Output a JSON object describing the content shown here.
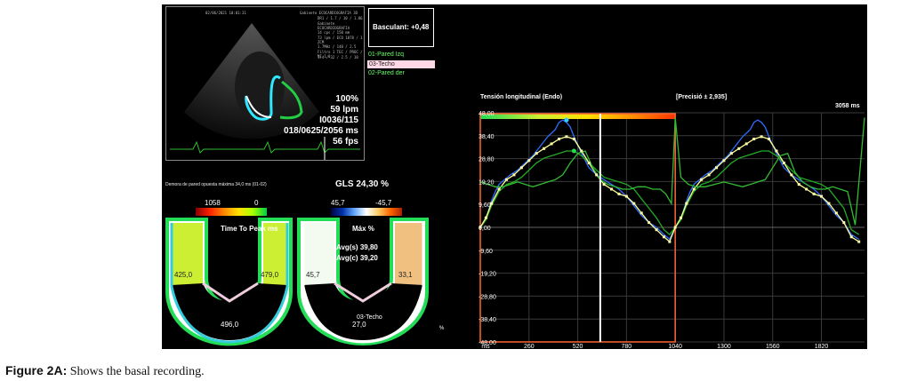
{
  "echo": {
    "header_lines": [
      "02/06/2021 10:01:31",
      "Gabinete ECOCARDIOGRAFIA 3D"
    ],
    "right_lines": [
      "DR1 / 1.7 / 10 / 1.86",
      "Gabinete ECOCARDIOGRAFIA",
      "14 cps / 150 mm",
      "73 lpm / ECO 1078 / 1 ZCM",
      "1.7MHz / 140 / 2.5",
      "Filtro 1 TEC / PROC / MI 1.0",
      "1:4 / 32 / 2.5 / 10"
    ],
    "stats": [
      "100%",
      "59 lpm",
      "I0036/115",
      "018/0625/2056 ms",
      "56 fps"
    ]
  },
  "basculant": "Basculant: +0,48",
  "segments": [
    {
      "label": "01-Pared Izq",
      "color": "#66ff66",
      "selected": false
    },
    {
      "label": "03-Techo",
      "color": "#ffffff",
      "selected": true
    },
    {
      "label": "02-Pared der",
      "color": "#66ff66",
      "selected": false
    }
  ],
  "bullseye": {
    "delay_text": "Demora de pared opuesta máxima 34,0 ms (01-02)",
    "gls": "GLS 24,30 %",
    "ttp": {
      "max": "1058",
      "min": "0",
      "label": "Time To Peak ms",
      "left": "425,0",
      "right": "479,0",
      "bottom": "496,0"
    },
    "strain": {
      "max": "45,7",
      "min": "-45,7",
      "label": "Máx %",
      "avg_s": "Avg(s) 39,80",
      "avg_c": "Avg(c) 39,20",
      "left": "45,7",
      "right": "33,1",
      "bottom": "27,0",
      "bottom_tag": "03-Techo"
    }
  },
  "chart_data": {
    "type": "line",
    "title": "Tensión longitudinal (Endo)",
    "precision": "[Precisió ± 2,935]",
    "duration": "3058 ms",
    "ylabel": "%",
    "xlabel": "ms",
    "xlim": [
      0,
      2050
    ],
    "ylim": [
      -48,
      48
    ],
    "x_ticks": [
      "ms",
      "260",
      "520",
      "780",
      "1040",
      "1300",
      "1560",
      "1820"
    ],
    "x_tick_values": [
      0,
      260,
      520,
      780,
      1040,
      1300,
      1560,
      1820
    ],
    "y_ticks": [
      "48,00",
      "38,40",
      "28,80",
      "19,20",
      "9,60",
      "0,00",
      "-9,60",
      "-19,20",
      "-28,80",
      "-38,40",
      "-48,00"
    ],
    "y_tick_values": [
      48,
      38.4,
      28.8,
      19.2,
      9.6,
      0,
      -9.6,
      -19.2,
      -28.8,
      -38.4,
      -48
    ],
    "grid": true,
    "cursor_x": 640,
    "box_x": [
      0,
      1040
    ],
    "series": [
      {
        "color": "#2f6dff",
        "x": [
          0,
          20,
          40,
          60,
          80,
          100,
          130,
          160,
          200,
          240,
          280,
          320,
          360,
          400,
          420,
          440,
          460,
          480,
          500,
          540,
          580,
          620,
          660,
          700,
          740,
          780,
          820,
          860,
          900,
          940,
          980,
          1010,
          1040,
          1060,
          1080,
          1100,
          1120,
          1140,
          1170,
          1200,
          1240,
          1280,
          1320,
          1360,
          1400,
          1440,
          1460,
          1480,
          1500,
          1520,
          1540,
          1580,
          1620,
          1660,
          1700,
          1740,
          1780,
          1820,
          1860,
          1900,
          1940,
          1980,
          2020
        ],
        "y": [
          0,
          2,
          6,
          11,
          15,
          18,
          20,
          22,
          24,
          27,
          30,
          34,
          38,
          41,
          44,
          45,
          44,
          42,
          38,
          31,
          25,
          22,
          20,
          18,
          16,
          13,
          9,
          5,
          2,
          0,
          -3,
          -5,
          0,
          2,
          6,
          11,
          15,
          18,
          20,
          22,
          24,
          27,
          30,
          34,
          38,
          41,
          44,
          45,
          44,
          42,
          38,
          31,
          25,
          22,
          20,
          18,
          16,
          13,
          9,
          5,
          2,
          -3,
          -5
        ]
      },
      {
        "color": "#22aa22",
        "x": [
          0,
          30,
          60,
          100,
          140,
          180,
          220,
          260,
          300,
          340,
          380,
          420,
          460,
          500,
          540,
          580,
          620,
          660,
          700,
          740,
          780,
          820,
          860,
          900,
          940,
          980,
          1010,
          1040,
          1070,
          1100,
          1140,
          1180,
          1220,
          1260,
          1300,
          1340,
          1380,
          1420,
          1460,
          1500,
          1540,
          1580,
          1620,
          1660,
          1700,
          1740,
          1780,
          1820,
          1860,
          1900,
          1940,
          1980,
          2020
        ],
        "y": [
          0,
          3,
          9,
          15,
          18,
          19,
          21,
          24,
          27,
          29,
          30,
          31,
          32,
          32,
          30,
          27,
          24,
          21,
          20,
          19,
          18,
          16,
          12,
          8,
          4,
          -1,
          -3,
          0,
          3,
          9,
          15,
          18,
          19,
          21,
          24,
          27,
          29,
          30,
          31,
          32,
          32,
          30,
          27,
          24,
          21,
          20,
          19,
          18,
          16,
          12,
          8,
          -1,
          -3
        ]
      },
      {
        "color": "#ffff99",
        "x": [
          0,
          30,
          60,
          100,
          140,
          180,
          220,
          260,
          300,
          340,
          380,
          420,
          460,
          500,
          540,
          580,
          620,
          660,
          700,
          740,
          780,
          820,
          860,
          900,
          940,
          980,
          1010,
          1040,
          1070,
          1100,
          1140,
          1180,
          1220,
          1260,
          1300,
          1340,
          1380,
          1420,
          1460,
          1500,
          1540,
          1580,
          1620,
          1660,
          1700,
          1740,
          1780,
          1820,
          1860,
          1900,
          1940,
          1980,
          2020
        ],
        "y": [
          0,
          4,
          10,
          16,
          20,
          22,
          25,
          28,
          31,
          33,
          35,
          37,
          38,
          37,
          32,
          27,
          22,
          18,
          16,
          14,
          13,
          10,
          6,
          2,
          -1,
          -4,
          -6,
          0,
          4,
          10,
          16,
          20,
          22,
          25,
          28,
          31,
          33,
          35,
          37,
          38,
          37,
          32,
          27,
          22,
          18,
          16,
          14,
          13,
          10,
          6,
          2,
          -4,
          -6
        ]
      },
      {
        "color": "#33bb33",
        "x": [
          0,
          40,
          80,
          120,
          160,
          200,
          240,
          280,
          320,
          360,
          400,
          440,
          480,
          520,
          560,
          600,
          640,
          680,
          720,
          760,
          800,
          840,
          880,
          920,
          960,
          990,
          1020,
          1040,
          1070,
          1110,
          1150,
          1200,
          1250,
          1300,
          1350,
          1400,
          1440,
          1480,
          1520,
          1560,
          1600,
          1640,
          1680,
          1720,
          1760,
          1800,
          1840,
          1880,
          1920,
          1960,
          2000,
          2050
        ],
        "y": [
          19,
          18,
          17,
          17,
          18,
          19,
          18,
          17,
          18,
          19,
          20,
          22,
          27,
          31,
          32,
          25,
          20,
          18,
          17,
          16,
          16,
          17,
          17,
          16,
          16,
          14,
          10,
          46,
          21,
          18,
          17,
          17,
          18,
          19,
          18,
          17,
          18,
          19,
          20,
          25,
          30,
          31,
          23,
          19,
          17,
          16,
          16,
          17,
          16,
          15,
          1,
          46
        ]
      }
    ]
  },
  "caption": {
    "label": "Figure 2A:",
    "text": " Shows the basal recording."
  }
}
